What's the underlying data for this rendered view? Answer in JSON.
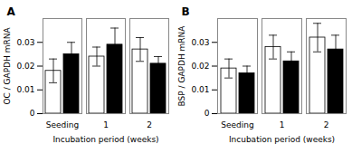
{
  "chart_data": [
    {
      "type": "bar",
      "title": "A",
      "x_label": "Incubation period (weeks)",
      "y_label": "OC / GAPDH mRNA",
      "categories": [
        "Seeding",
        "1",
        "2"
      ],
      "series": [
        {
          "color": "white",
          "values": [
            0.018,
            0.024,
            0.027
          ],
          "errors": [
            0.005,
            0.004,
            0.005
          ]
        },
        {
          "color": "black",
          "values": [
            0.025,
            0.029,
            0.021
          ],
          "errors": [
            0.005,
            0.007,
            0.003
          ]
        }
      ],
      "ylim": [
        0,
        0.04
      ],
      "yticks": [
        0,
        0.01,
        0.02,
        0.03
      ],
      "grid": false
    },
    {
      "type": "bar",
      "title": "B",
      "x_label": "Incubation period (weeks)",
      "y_label": "BSP / GAPDH mRNA",
      "categories": [
        "Seeding",
        "1",
        "2"
      ],
      "series": [
        {
          "color": "white",
          "values": [
            0.019,
            0.028,
            0.032
          ],
          "errors": [
            0.004,
            0.005,
            0.006
          ]
        },
        {
          "color": "black",
          "values": [
            0.017,
            0.022,
            0.027
          ],
          "errors": [
            0.003,
            0.004,
            0.006
          ]
        }
      ],
      "ylim": [
        0,
        0.04
      ],
      "yticks": [
        0,
        0.01,
        0.02,
        0.03
      ],
      "grid": false
    }
  ]
}
